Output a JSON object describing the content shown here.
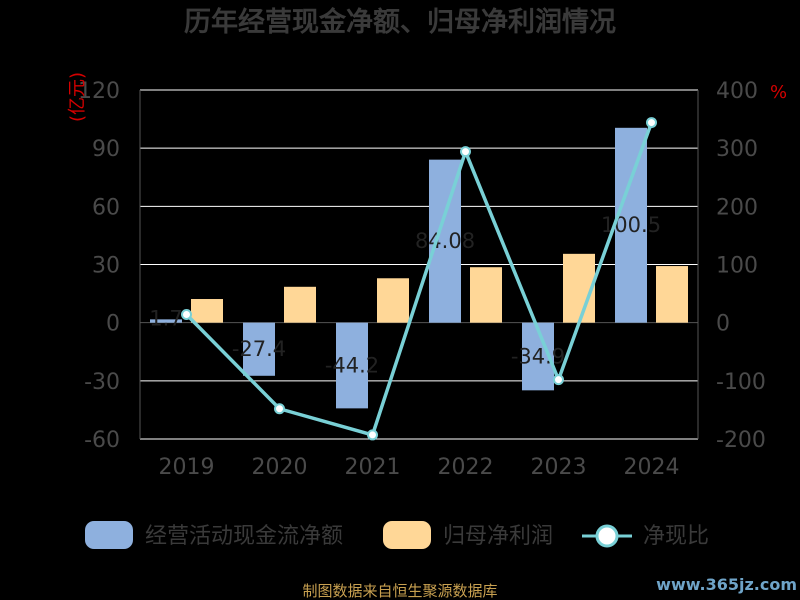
{
  "chart_data": {
    "type": "bar",
    "title": "历年经营现金净额、归母净利润情况",
    "categories": [
      "2019",
      "2020",
      "2021",
      "2022",
      "2023",
      "2024"
    ],
    "y_left": {
      "unit": "(亿元)",
      "ticks": [
        "120",
        "90",
        "60",
        "30",
        "0",
        "-30",
        "-60"
      ],
      "ylim": [
        -60,
        120
      ]
    },
    "y_right": {
      "unit": "%",
      "ticks": [
        "400",
        "300",
        "200",
        "100",
        "0",
        "-100",
        "-200"
      ],
      "ylim": [
        -200,
        400
      ]
    },
    "series": [
      {
        "name": "经营活动现金流净额",
        "type": "bar",
        "axis": "left",
        "color": "#8eb0de",
        "values": [
          1.7,
          -27.4,
          -44.2,
          84.08,
          -34.9,
          100.5
        ],
        "data_labels": [
          "1.7",
          "-27.4",
          "-44.2",
          "84.08",
          "-34.9",
          "100.5"
        ]
      },
      {
        "name": "归母净利润",
        "type": "bar",
        "axis": "left",
        "color": "#ffd797",
        "values": [
          12.2,
          18.5,
          22.9,
          28.6,
          35.5,
          29.2
        ]
      },
      {
        "name": "净现比",
        "type": "line",
        "axis": "right",
        "color": "#79d0d6",
        "values": [
          14,
          -148,
          -193,
          294,
          -98,
          344
        ]
      }
    ],
    "grid": true,
    "legend_position": "bottom"
  },
  "footer": {
    "source": "制图数据来自恒生聚源数据库"
  },
  "watermark": {
    "text": "www.365jz.com"
  }
}
